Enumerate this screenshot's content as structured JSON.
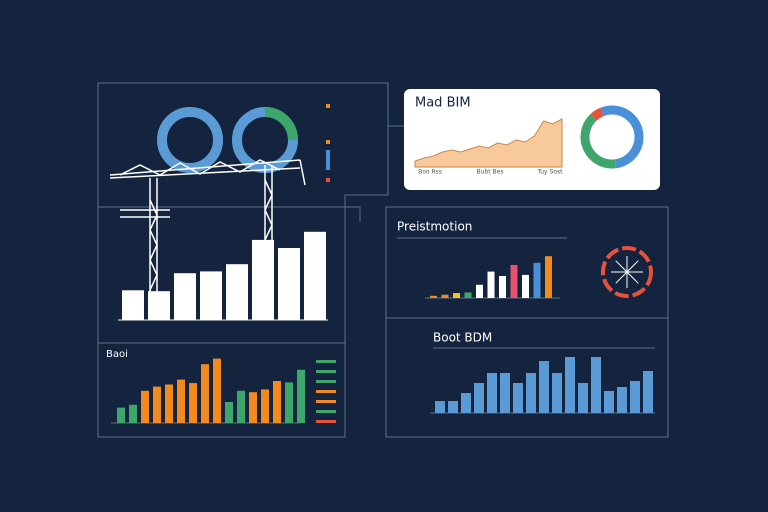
{
  "crane_chart": {
    "values": [
      33,
      32,
      52,
      54,
      62,
      89,
      80,
      98
    ],
    "color": "#ffffff"
  },
  "baoi_chart": {
    "title": "Baoi",
    "values": [
      22,
      26,
      46,
      52,
      55,
      62,
      57,
      84,
      92,
      30,
      46,
      44,
      48,
      60,
      58,
      76
    ],
    "colors": [
      "#3fa66b",
      "#3fa66b",
      "#f28a1e",
      "#f28a1e",
      "#f28a1e",
      "#f28a1e",
      "#f28a1e",
      "#f28a1e",
      "#f28a1e",
      "#3fa66b",
      "#3fa66b",
      "#f28a1e",
      "#f28a1e",
      "#f28a1e",
      "#3fa66b",
      "#3fa66b"
    ],
    "legend_colors": [
      "#3fa66b",
      "#3fa66b",
      "#3fa66b",
      "#f28a1e",
      "#f28a1e",
      "#3fa66b",
      "#e8523a"
    ]
  },
  "mad_bim": {
    "title": "Mad BIM",
    "x_labels": [
      "Boo Rss",
      "Bubt Bes",
      "Tuy Sost"
    ],
    "values": [
      12,
      18,
      22,
      30,
      34,
      30,
      36,
      42,
      38,
      48,
      44,
      54,
      50,
      62,
      92,
      86,
      96
    ],
    "donut": [
      {
        "value": 48,
        "color": "#4a90d9"
      },
      {
        "value": 40,
        "color": "#3fa66b"
      },
      {
        "value": 6,
        "color": "#e8523a"
      },
      {
        "value": 6,
        "color": "#4a90d9"
      }
    ]
  },
  "preist_chart": {
    "title": "Preistmotion",
    "values": [
      4,
      6,
      9,
      10,
      24,
      48,
      40,
      60,
      42,
      64,
      76
    ],
    "colors": [
      "#f28a1e",
      "#f28a1e",
      "#f2c41e",
      "#3fa66b",
      "#ffffff",
      "#ffffff",
      "#ffffff",
      "#e8526a",
      "#ffffff",
      "#4a90d9",
      "#f28a1e"
    ]
  },
  "boot_chart": {
    "title": "Boot BDM",
    "values": [
      12,
      12,
      20,
      30,
      40,
      40,
      30,
      40,
      52,
      40,
      56,
      30,
      56,
      22,
      26,
      32,
      42
    ]
  }
}
